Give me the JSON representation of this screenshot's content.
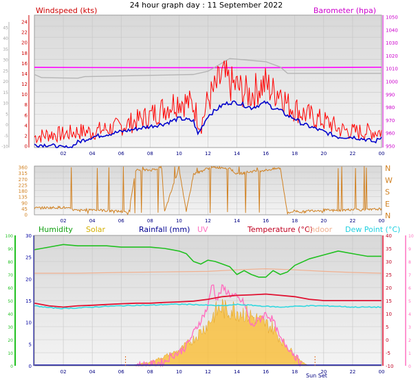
{
  "title": "24 hour graph day : 11 September 2022",
  "x_ticks": [
    "02",
    "04",
    "06",
    "08",
    "10",
    "12",
    "14",
    "16",
    "18",
    "20",
    "22",
    "00"
  ],
  "colors": {
    "wind": "#cc0000",
    "gust": "#ff0000",
    "avg": "#0000cc",
    "baro": "#ff00ff",
    "baro_avg": "#b4b4b4",
    "wind_dir": "#d08020",
    "humidity": "#20c020",
    "solar": "#f8c040",
    "rain": "#0000a0",
    "uv": "#ff70c0",
    "temperature": "#e01030",
    "indoor": "#f0b090",
    "dewpoint": "#30d8e0",
    "panel_bg": "#e4e4e4",
    "panel_bg_light": "#f0f0f0"
  },
  "chart_data": [
    {
      "type": "line",
      "panel": "wind",
      "labels": {
        "left": "Windspeed (kts)",
        "right": "Barometer (hpa)"
      },
      "y_left_ticks_inner": [
        "24",
        "22",
        "20",
        "18",
        "16",
        "14",
        "12",
        "10",
        "8",
        "6",
        "4",
        "2",
        "0"
      ],
      "y_left_ticks_outer": [
        "45",
        "40",
        "35",
        "30",
        "25",
        "20",
        "15",
        "10",
        "5",
        "0",
        "-5",
        "-10"
      ],
      "y_right_ticks": [
        "1050",
        "1040",
        "1030",
        "1020",
        "1010",
        "1000",
        "990",
        "980",
        "970",
        "960",
        "950"
      ],
      "ylim_left": [
        0,
        25
      ],
      "ylim_right": [
        950,
        1050
      ],
      "series": [
        {
          "key": "baro",
          "x": [
            0,
            8,
            16,
            24
          ],
          "y": [
            1010.5,
            1010.3,
            1010.3,
            1010.6
          ]
        },
        {
          "key": "baro_avg",
          "x": [
            0,
            0.5,
            3,
            3.5,
            11,
            12,
            13.5,
            16,
            17,
            17.5,
            21.5,
            24
          ],
          "y": [
            13.8,
            13.2,
            13.1,
            13.4,
            13.8,
            14.4,
            16.8,
            16.2,
            15.2,
            14.0,
            14.0,
            14.0
          ]
        },
        {
          "key": "gust",
          "x": [
            0,
            1,
            2,
            3,
            4,
            5,
            6,
            7,
            8,
            9,
            10,
            11,
            11.5,
            12,
            12.5,
            13,
            13.5,
            14,
            14.5,
            15,
            15.5,
            16,
            16.5,
            17,
            17.5,
            18,
            18.5,
            19,
            19.5,
            20,
            20.5,
            21,
            22,
            23,
            24
          ],
          "y": [
            2,
            2.5,
            2.5,
            3,
            3,
            3.5,
            4,
            5,
            6,
            7.5,
            9,
            8,
            4,
            9,
            11,
            13.5,
            12,
            11.5,
            10.5,
            10,
            11.5,
            12,
            10.5,
            11,
            8,
            7.5,
            6.5,
            6,
            5.5,
            5,
            4.5,
            3.5,
            3,
            3,
            3
          ]
        },
        {
          "key": "avg",
          "x": [
            0,
            1,
            1.8,
            2,
            2.5,
            3,
            4,
            5,
            6,
            7,
            8,
            9,
            10,
            11,
            11.3,
            11.6,
            12,
            12.5,
            13,
            13.5,
            14,
            14.5,
            15,
            15.5,
            16,
            16.5,
            17,
            17.5,
            18,
            18.5,
            19,
            20,
            21,
            22,
            23,
            23.5,
            24
          ],
          "y": [
            0.5,
            0.5,
            0,
            0,
            0,
            1,
            2,
            2.5,
            3,
            3.5,
            4,
            4.5,
            5.5,
            5,
            2.5,
            4,
            6,
            7,
            8,
            8.5,
            8.5,
            8,
            7.5,
            8,
            8.5,
            7.5,
            7,
            6,
            5.5,
            4.5,
            4,
            3,
            2,
            2,
            1.5,
            1,
            2
          ]
        }
      ]
    },
    {
      "type": "line",
      "panel": "wind_direction",
      "y_left_ticks": [
        "360",
        "315",
        "270",
        "225",
        "180",
        "135",
        "90",
        "45",
        "0"
      ],
      "y_right_ticks": [
        "N",
        "W",
        "S",
        "E",
        "N"
      ],
      "ylim": [
        0,
        360
      ],
      "series": [
        {
          "key": "wind_dir",
          "x": [
            0,
            2,
            3,
            4,
            5,
            6,
            6.5,
            7,
            8,
            8.8,
            9,
            10,
            10.5,
            11,
            11.5,
            12,
            12.5,
            13,
            13.5,
            14,
            15,
            16,
            17,
            17.5,
            18,
            18.5,
            19,
            20,
            21,
            22,
            23,
            24
          ],
          "y": [
            50,
            55,
            30,
            40,
            30,
            25,
            10,
            330,
            330,
            350,
            20,
            350,
            20,
            300,
            320,
            345,
            350,
            350,
            345,
            300,
            320,
            330,
            345,
            10,
            30,
            20,
            30,
            35,
            30,
            40,
            35,
            45
          ]
        }
      ]
    },
    {
      "type": "area",
      "panel": "temperature",
      "labels": [
        "Humidity",
        "Solar",
        "Rainfall (mm)",
        "UV",
        "Temperature (°C)",
        "Indoor",
        "Dew Point (°C)"
      ],
      "y_hum_ticks": [
        "100",
        "90",
        "80",
        "70",
        "60",
        "50",
        "40",
        "30",
        "20",
        "10",
        "0"
      ],
      "y_rain_ticks": [
        "30",
        "25",
        "20",
        "15",
        "10",
        "5",
        "0"
      ],
      "y_temp_ticks": [
        "40",
        "35",
        "30",
        "25",
        "20",
        "15",
        "10",
        "5",
        "0",
        "-5",
        "-10"
      ],
      "y_uv_ticks": [
        "10",
        "9",
        "8",
        "7",
        "6",
        "5",
        "4",
        "3",
        "2",
        "1",
        "0"
      ],
      "series": [
        {
          "key": "humidity",
          "unit": "%",
          "x": [
            0,
            1,
            2,
            3,
            4,
            5,
            6,
            7,
            8,
            9,
            10,
            10.5,
            11,
            11.5,
            12,
            12.5,
            13,
            13.5,
            14,
            14.5,
            15,
            15.5,
            16,
            16.5,
            17,
            17.5,
            18,
            19,
            20,
            21,
            22,
            23,
            24
          ],
          "y": [
            89,
            91,
            93,
            92,
            92,
            92,
            91,
            91,
            91,
            90,
            88,
            86,
            80,
            78,
            81,
            80,
            78,
            76,
            70,
            73,
            70,
            68,
            68,
            73,
            70,
            72,
            77,
            82,
            85,
            88,
            86,
            84,
            84
          ]
        },
        {
          "key": "temperature",
          "unit": "C",
          "x": [
            0,
            1,
            2,
            3,
            4,
            5,
            6,
            7,
            8,
            9,
            10,
            11,
            12,
            13,
            14,
            15,
            16,
            17,
            18,
            19,
            20,
            21,
            22,
            23,
            24
          ],
          "y": [
            14,
            13,
            12.5,
            13,
            13.2,
            13.5,
            13.8,
            14,
            14,
            14.3,
            14.5,
            14.8,
            15.5,
            16.5,
            17,
            17.2,
            17.5,
            17,
            16.5,
            15.5,
            15,
            15,
            15,
            15,
            15
          ]
        },
        {
          "key": "dewpoint",
          "unit": "C",
          "x": [
            0,
            1,
            2,
            3,
            4,
            5,
            6,
            7,
            8,
            9,
            10,
            11,
            12,
            13,
            14,
            15,
            16,
            17,
            18,
            19,
            20,
            21,
            22,
            23,
            24
          ],
          "y": [
            13,
            12.3,
            12,
            12.2,
            12.5,
            12.8,
            13,
            13.2,
            13.2,
            13.5,
            13.6,
            13.5,
            13.2,
            13.0,
            13.5,
            13.2,
            12.8,
            12.5,
            12.8,
            13,
            13,
            12.8,
            12.5,
            12.5,
            12.5
          ]
        },
        {
          "key": "indoor",
          "unit": "C",
          "x": [
            0,
            3,
            6,
            9,
            12,
            14,
            16,
            18,
            20,
            22,
            24
          ],
          "y": [
            25.5,
            25.5,
            25.8,
            26,
            26.2,
            26.8,
            27.2,
            26.8,
            26.2,
            25.8,
            25.5
          ]
        },
        {
          "key": "solar",
          "unit": "rel",
          "x": [
            6.5,
            7,
            8,
            9,
            10,
            10.5,
            11,
            11.5,
            12,
            12.5,
            13,
            13.3,
            13.6,
            14,
            14.5,
            15,
            15.5,
            16,
            16.5,
            17,
            17.5,
            18,
            18.5,
            19
          ],
          "y": [
            0,
            0.3,
            1,
            2.5,
            4,
            5.5,
            7,
            9,
            11,
            14,
            15.5,
            14,
            15,
            14.5,
            14,
            13,
            12,
            11,
            10,
            7,
            5,
            3,
            1,
            0
          ]
        },
        {
          "key": "uv",
          "unit": "index",
          "x": [
            7,
            8,
            8.5,
            9,
            9.5,
            10,
            10.5,
            11,
            11.5,
            12,
            12.3,
            12.6,
            13,
            13.5,
            14,
            14.5,
            15,
            15.5,
            16,
            16.5,
            17,
            17.5,
            18,
            18.5
          ],
          "y": [
            0,
            0.1,
            0.2,
            0.3,
            0.8,
            1,
            1.5,
            2.5,
            3.5,
            4.5,
            6.5,
            5,
            6,
            5.5,
            5.2,
            4.8,
            3,
            3.5,
            4,
            3.5,
            2,
            1.5,
            0.8,
            0
          ]
        },
        {
          "key": "rain",
          "unit": "mm",
          "x": [
            0,
            24
          ],
          "y": [
            0,
            0
          ]
        }
      ]
    }
  ],
  "annotations": {
    "sun_set": "Sun Set"
  }
}
